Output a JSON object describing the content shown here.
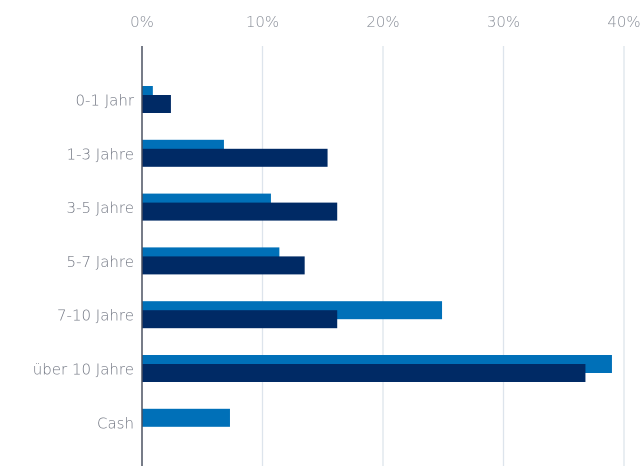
{
  "chart_data": {
    "type": "bar",
    "orientation": "horizontal",
    "categories": [
      "0-1 Jahr",
      "1-3 Jahre",
      "3-5 Jahre",
      "5-7 Jahre",
      "7-10 Jahre",
      "über 10 Jahre",
      "Cash"
    ],
    "series": [
      {
        "color": "#0070b8",
        "values": [
          0.9,
          6.8,
          10.7,
          11.4,
          24.9,
          39.0,
          7.3
        ]
      },
      {
        "color": "#002a65",
        "values": [
          2.4,
          15.4,
          16.2,
          13.5,
          16.2,
          36.8,
          0
        ]
      }
    ],
    "xlim": [
      0,
      40
    ],
    "xticks": [
      0,
      10,
      20,
      30,
      40
    ],
    "xtick_labels": [
      "0%",
      "10%",
      "20%",
      "30%",
      "40%"
    ],
    "x_axis_position": "top",
    "grid": "vertical",
    "legend": "none"
  }
}
